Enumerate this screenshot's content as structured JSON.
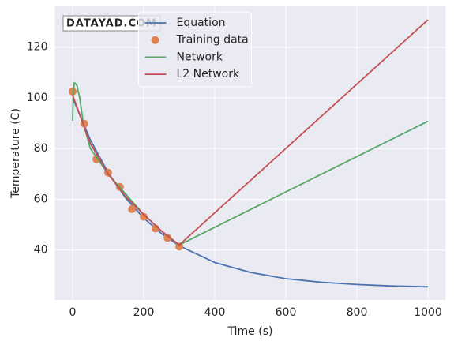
{
  "chart_data": {
    "type": "line",
    "xlabel": "Time (s)",
    "ylabel": "Temperature (C)",
    "watermark": "DATAYAD.COM",
    "xlim": [
      -50,
      1050
    ],
    "xticks": [
      0,
      200,
      400,
      600,
      800,
      1000
    ],
    "ylim": [
      20.3,
      136.1
    ],
    "yticks": [
      40,
      60,
      80,
      100,
      120
    ],
    "grid": true,
    "legend": "upper center",
    "series": [
      {
        "name": "Equation",
        "color": "#4c72b0",
        "style": "line",
        "x": [
          0,
          50,
          100,
          150,
          200,
          250,
          300,
          400,
          500,
          600,
          700,
          800,
          900,
          1000
        ],
        "values": [
          100,
          83.4,
          70.5,
          60.4,
          52.6,
          46.5,
          41.7,
          35.1,
          31.2,
          28.7,
          27.3,
          26.4,
          25.8,
          25.5
        ]
      },
      {
        "name": "Training data",
        "color": "#dd8452",
        "style": "marker",
        "x": [
          0,
          33,
          67,
          100,
          133,
          167,
          200,
          233,
          267,
          300
        ],
        "values": [
          102.5,
          89.8,
          75.8,
          70.5,
          64.9,
          56.1,
          53.1,
          48.5,
          44.8,
          41.4
        ]
      },
      {
        "name": "Network",
        "color": "#55a868",
        "style": "line",
        "x": [
          0,
          2,
          5,
          12,
          20,
          30,
          50,
          100,
          150,
          200,
          250,
          300,
          1000
        ],
        "values": [
          91,
          102,
          106,
          105,
          100,
          90,
          80,
          70,
          62,
          54,
          47.5,
          42,
          90.8
        ]
      },
      {
        "name": "L2 Network",
        "color": "#c44e52",
        "style": "line",
        "x": [
          0,
          50,
          100,
          150,
          200,
          250,
          300,
          1000
        ],
        "values": [
          101,
          82,
          70,
          61,
          54,
          47.5,
          42,
          130.8
        ]
      }
    ]
  }
}
